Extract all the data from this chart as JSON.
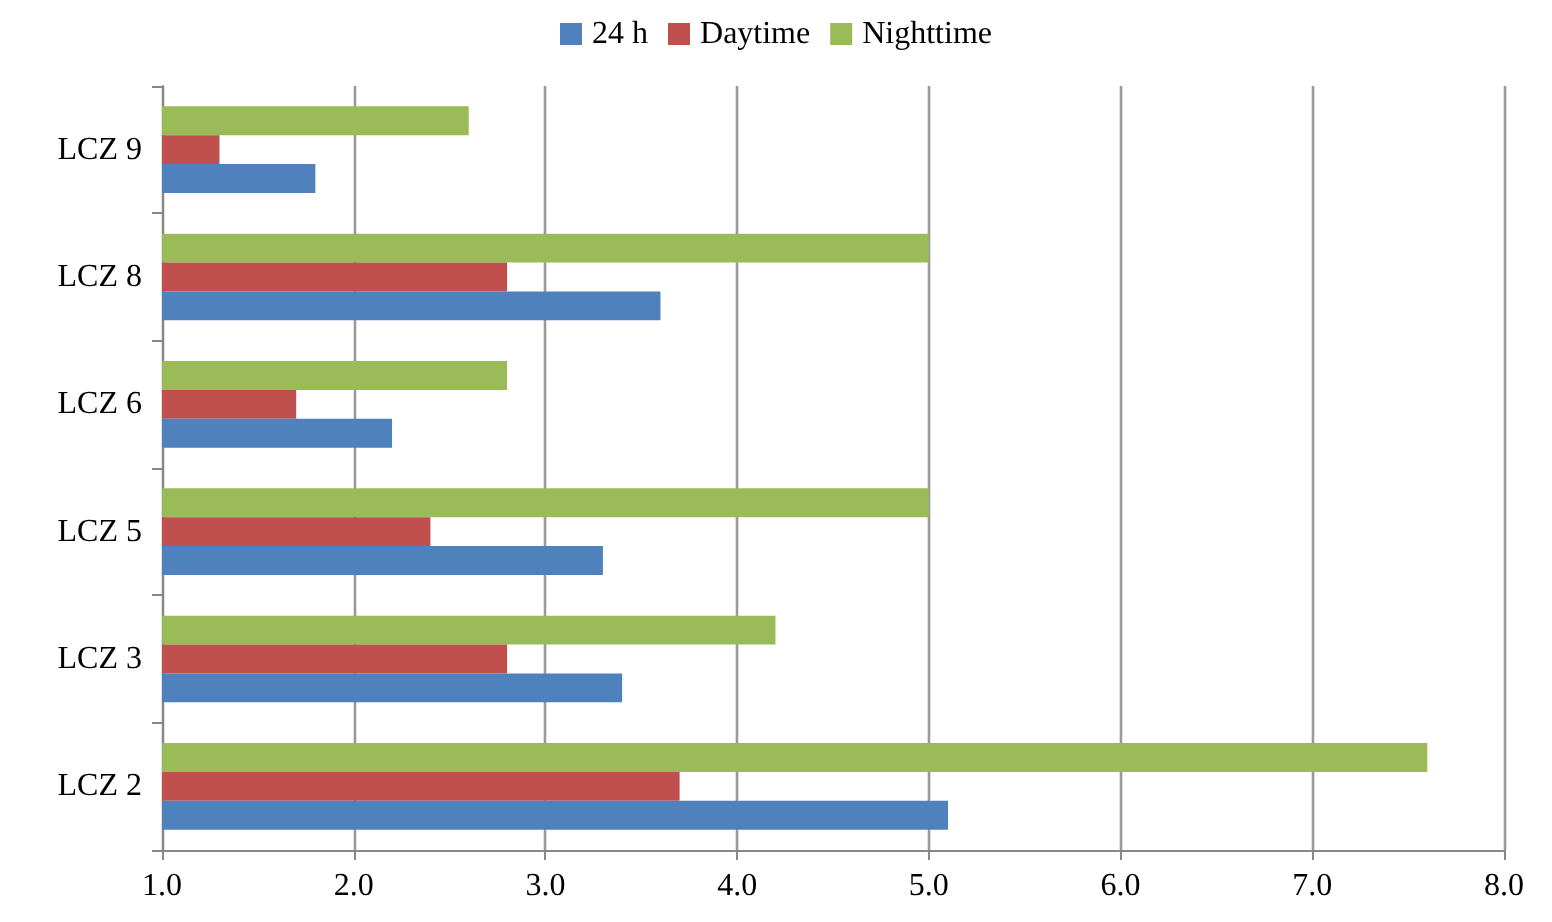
{
  "chart_data": {
    "type": "bar",
    "orientation": "horizontal",
    "categories": [
      "LCZ 9",
      "LCZ 8",
      "LCZ 6",
      "LCZ 5",
      "LCZ 3",
      "LCZ 2"
    ],
    "series": [
      {
        "name": "24 h",
        "color": "#4f81bd",
        "values": [
          1.8,
          3.6,
          2.2,
          3.3,
          3.4,
          5.1
        ]
      },
      {
        "name": "Daytime",
        "color": "#c0504d",
        "values": [
          1.3,
          2.8,
          1.7,
          2.4,
          2.8,
          3.7
        ]
      },
      {
        "name": "Nighttime",
        "color": "#9bbb59",
        "values": [
          2.6,
          5.0,
          2.8,
          5.0,
          4.2,
          7.6
        ]
      }
    ],
    "xlim": [
      1.0,
      8.0
    ],
    "xticks": [
      {
        "value": 1,
        "label": "1.0"
      },
      {
        "value": 2,
        "label": "2.0"
      },
      {
        "value": 3,
        "label": "3.0"
      },
      {
        "value": 4,
        "label": "4.0"
      },
      {
        "value": 5,
        "label": "5.0"
      },
      {
        "value": 6,
        "label": "6.0"
      },
      {
        "value": 7,
        "label": "7.0"
      },
      {
        "value": 8,
        "label": "8.0"
      }
    ],
    "grid": "x",
    "legend": "top"
  }
}
